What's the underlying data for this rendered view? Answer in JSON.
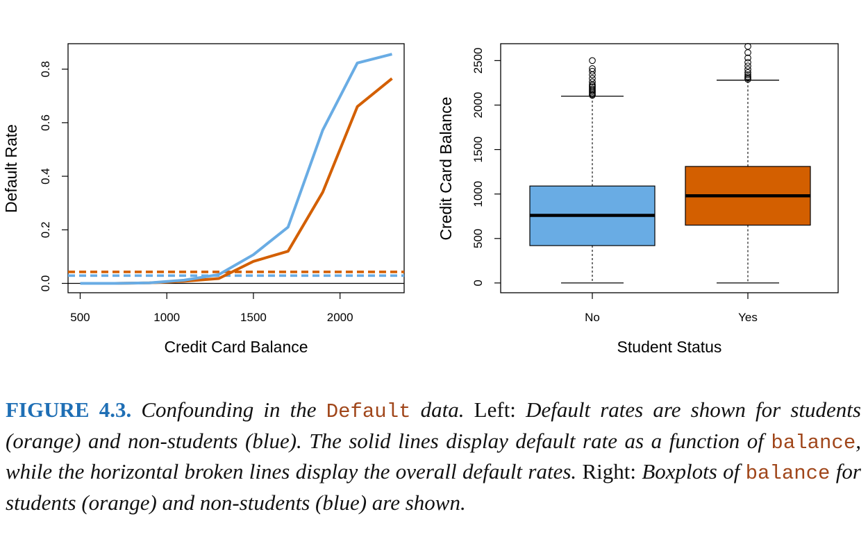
{
  "colors": {
    "student": "#d35f00",
    "non_student": "#69ace4",
    "figure_label": "#1f6fb5",
    "code": "#a0461a"
  },
  "chart_data": [
    {
      "type": "line",
      "xlabel": "Credit Card Balance",
      "ylabel": "Default Rate",
      "xlim": [
        430,
        2370
      ],
      "ylim": [
        -0.035,
        0.895
      ],
      "xticks": [
        500,
        1000,
        1500,
        2000
      ],
      "yticks": [
        0.0,
        0.2,
        0.4,
        0.6,
        0.8
      ],
      "ytick_labels": [
        "0.0",
        "0.2",
        "0.4",
        "0.6",
        "0.8"
      ],
      "x": [
        500,
        700,
        900,
        1100,
        1300,
        1500,
        1700,
        1900,
        2100,
        2300
      ],
      "series": [
        {
          "key": "students",
          "color": "#d35f00",
          "values": [
            0.0,
            0.0,
            0.002,
            0.008,
            0.018,
            0.082,
            0.12,
            0.34,
            0.66,
            0.765
          ]
        },
        {
          "key": "non_students",
          "color": "#69ace4",
          "values": [
            0.0,
            0.0,
            0.002,
            0.012,
            0.033,
            0.107,
            0.21,
            0.572,
            0.823,
            0.856
          ]
        }
      ],
      "overall_rates": [
        {
          "key": "students",
          "color": "#d35f00",
          "value": 0.043
        },
        {
          "key": "non_students",
          "color": "#69ace4",
          "value": 0.029
        }
      ],
      "hline": 0.0
    },
    {
      "type": "boxplot",
      "xlabel": "Student Status",
      "ylabel": "Credit Card Balance",
      "categories": [
        "No",
        "Yes"
      ],
      "ylim": [
        -110,
        2690
      ],
      "yticks": [
        0,
        500,
        1000,
        1500,
        2000,
        2500
      ],
      "ytick_labels": [
        "0",
        "500",
        "1000",
        "1500",
        "2000",
        "2500"
      ],
      "boxes": [
        {
          "category": "No",
          "color": "#69ace4",
          "min": 0,
          "q1": 420,
          "median": 760,
          "q3": 1090,
          "max": 2100,
          "outliers": [
            2110,
            2120,
            2135,
            2150,
            2165,
            2180,
            2200,
            2215,
            2230,
            2260,
            2300,
            2340,
            2380,
            2410,
            2500
          ]
        },
        {
          "category": "Yes",
          "color": "#d35f00",
          "min": 0,
          "q1": 650,
          "median": 980,
          "q3": 1310,
          "max": 2280,
          "outliers": [
            2290,
            2305,
            2320,
            2340,
            2365,
            2400,
            2440,
            2480,
            2530,
            2590,
            2660
          ]
        }
      ]
    }
  ],
  "caption": {
    "figure_label": "FIGURE 4.3.",
    "part1": " Confounding in the ",
    "code1": "Default",
    "part2": " data. ",
    "left_word": "Left:",
    "part3": " Default rates are shown for students (orange) and non-students (blue). The solid lines display default rate as a function of ",
    "code2": "balance",
    "part4": ", while the horizontal broken lines display the overall default rates. ",
    "right_word": "Right:",
    "part5": " Boxplots of ",
    "code3": "balance",
    "part6": " for students (orange) and non-students (blue) are shown."
  }
}
